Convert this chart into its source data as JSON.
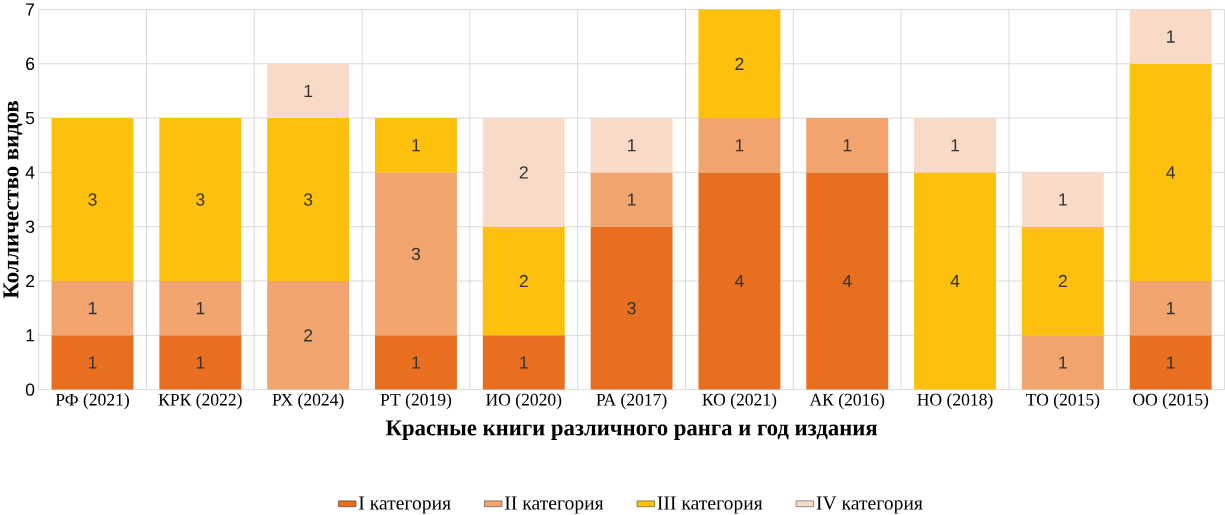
{
  "chart_data": {
    "type": "bar",
    "stacked": true,
    "xlabel": "Красные книги различного ранга и год издания",
    "ylabel": "Колличество видов",
    "categories": [
      "РФ (2021)",
      "КРК (2022)",
      "РХ (2024)",
      "РТ (2019)",
      "ИО (2020)",
      "РА (2017)",
      "КО (2021)",
      "АК (2016)",
      "НО (2018)",
      "ТО (2015)",
      "ОО (2015)"
    ],
    "series": [
      {
        "name": "I категория",
        "color": "#e86f1f",
        "values": [
          1,
          1,
          null,
          1,
          1,
          3,
          4,
          4,
          null,
          null,
          1
        ]
      },
      {
        "name": "II категория",
        "color": "#f2a46f",
        "values": [
          1,
          1,
          2,
          3,
          null,
          1,
          1,
          1,
          null,
          1,
          1
        ]
      },
      {
        "name": "III категория",
        "color": "#fdc00c",
        "values": [
          3,
          3,
          3,
          1,
          2,
          null,
          2,
          null,
          4,
          2,
          4
        ]
      },
      {
        "name": "IV категория",
        "color": "#f9dac6",
        "values": [
          null,
          null,
          1,
          null,
          2,
          1,
          null,
          null,
          1,
          1,
          1
        ]
      }
    ],
    "ylim": [
      0,
      7
    ],
    "yticks": [
      0,
      1,
      2,
      3,
      4,
      5,
      6,
      7
    ],
    "grid": true,
    "legend": "bottom",
    "data_labels": true
  }
}
